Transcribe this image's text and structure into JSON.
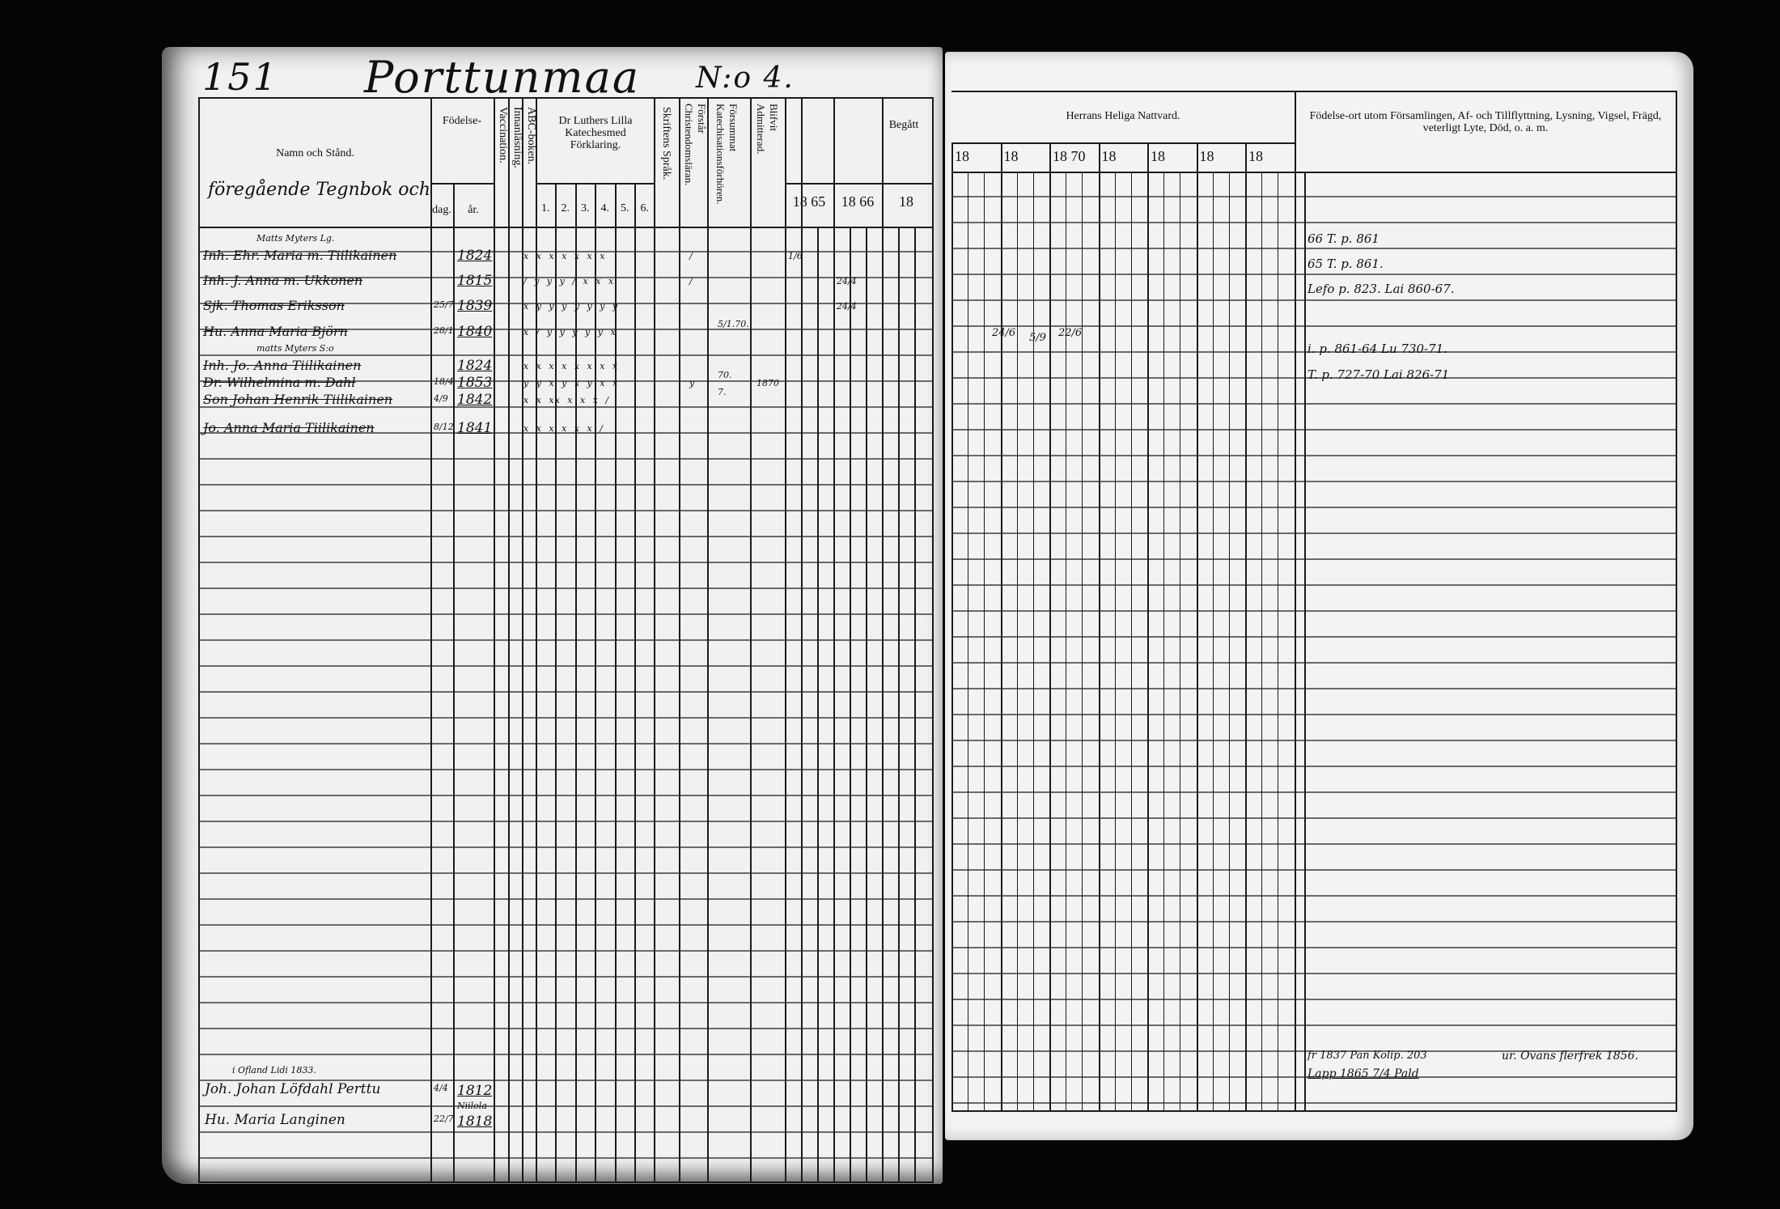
{
  "left_page": {
    "page_number": "151",
    "village_title": "Porttunmaa",
    "house_label": "N:o 4.",
    "headers": {
      "name": "Namn och Stånd.",
      "name_note": "föregående Tegnbok och",
      "birth": "Födelse-",
      "birth_day": "dag.",
      "birth_year": "år.",
      "vaccination": "Vaccination.",
      "reading": "Innanläsning.",
      "abc": "ABC-boken.",
      "catechism": "Dr Luthers Lilla Katechesmed Förklaring.",
      "catechism_parts": [
        "1.",
        "2.",
        "3.",
        "4.",
        "5.",
        "6."
      ],
      "scripture": "Skriftens Språk.",
      "understands": "Förstår Christendomsläran.",
      "neglected": "Försummat Katechisationsförhören.",
      "admitted": "Blifvit Admitterad.",
      "communion": "Begått",
      "years": [
        "18 65",
        "18 66",
        "18"
      ]
    },
    "entries": [
      {
        "above": "Matts Myters Lg.",
        "name": "Inh. Ehr. Maria m. Tiilikainen",
        "day": "",
        "year": "1824",
        "marks": "x  x  x  x  x  x  x",
        "understands": "/",
        "neglected": "",
        "admitted": "",
        "communion": "1/6"
      },
      {
        "above": "",
        "name": "Inh. J. Anna m. Ukkonen",
        "day": "",
        "year": "1815",
        "marks": "/  y  y  y  /  x  x  x",
        "understands": "/",
        "neglected": "",
        "admitted": "",
        "communion": "24/4"
      },
      {
        "above": "",
        "name": "Sjk. Thomas Eriksson",
        "day": "25/7",
        "year": "1839",
        "marks": "x  y  y  y  y  y  y  y",
        "understands": "",
        "neglected": "",
        "admitted": "",
        "communion": "24/4"
      },
      {
        "above": "",
        "name": "Hu. Anna Maria Björn",
        "day": "28/1",
        "year": "1840",
        "marks": "x  /  y  y  y  y  y  x",
        "understands": "",
        "neglected": "5/1.70.",
        "admitted": "",
        "communion": ""
      },
      {
        "above": "matts Myters S:o",
        "name": "Inh. Jo. Anna Tiilikainen",
        "day": "",
        "year": "1824",
        "marks": "x  x  x  x  x  x  x  x",
        "understands": "",
        "neglected": "",
        "admitted": "",
        "communion": ""
      },
      {
        "above": "",
        "name": "Dr. Wilhelmina m. Dahl",
        "day": "18/4",
        "year": "1853",
        "marks": "y  y  x  y  x  y  x  x",
        "understands": "y",
        "neglected": "70.",
        "admitted": "1870",
        "communion": ""
      },
      {
        "above": "",
        "name": "Son Johan Henrik Tiilikainen",
        "day": "4/9",
        "year": "1842",
        "marks": "x  x  xx  x  x  x  /",
        "understands": "",
        "neglected": "7.",
        "admitted": "",
        "communion": ""
      },
      {
        "above": "",
        "name": "Jo. Anna Maria Tiilikainen",
        "day": "8/12",
        "year": "1841",
        "marks": "x  x  x  x  x  x  /",
        "understands": "",
        "neglected": "",
        "admitted": "",
        "communion": ""
      }
    ],
    "bottom_entries": [
      {
        "above": "i Ofland Lidi 1833.",
        "name": "Joh. Johan Löfdahl Perttu",
        "day": "4/4",
        "year": "1812",
        "place": ""
      },
      {
        "above": "",
        "name": "Hu. Maria Langinen",
        "day": "22/7",
        "year": "1818",
        "place": "Niilola"
      }
    ]
  },
  "right_page": {
    "headers": {
      "communion": "Herrans Heliga Nattvard.",
      "years": [
        "18",
        "18",
        "18 70",
        "18",
        "18",
        "18",
        "18"
      ],
      "remarks": "Födelse-ort utom Församlingen, Af- och Tillflyttning, Lysning, Vigsel, Frägd, veterligt Lyte, Död, o. a. m."
    },
    "communion_marks": [
      "24/6",
      "5/9",
      "22/6"
    ],
    "remarks": [
      "66 T. p. 861",
      "65 T. p. 861.",
      "Lefo p. 823. Lai 860-67.",
      "",
      "i. p. 861-64   Lu 730-71.",
      "T. p. 727-70  Lai 826-71"
    ],
    "bottom_remarks": [
      "fr 1837 Pan Kolip. 203",
      "Lapp 1865 7/4 Pald",
      "ur. Ovans flerfrek 1856."
    ]
  }
}
